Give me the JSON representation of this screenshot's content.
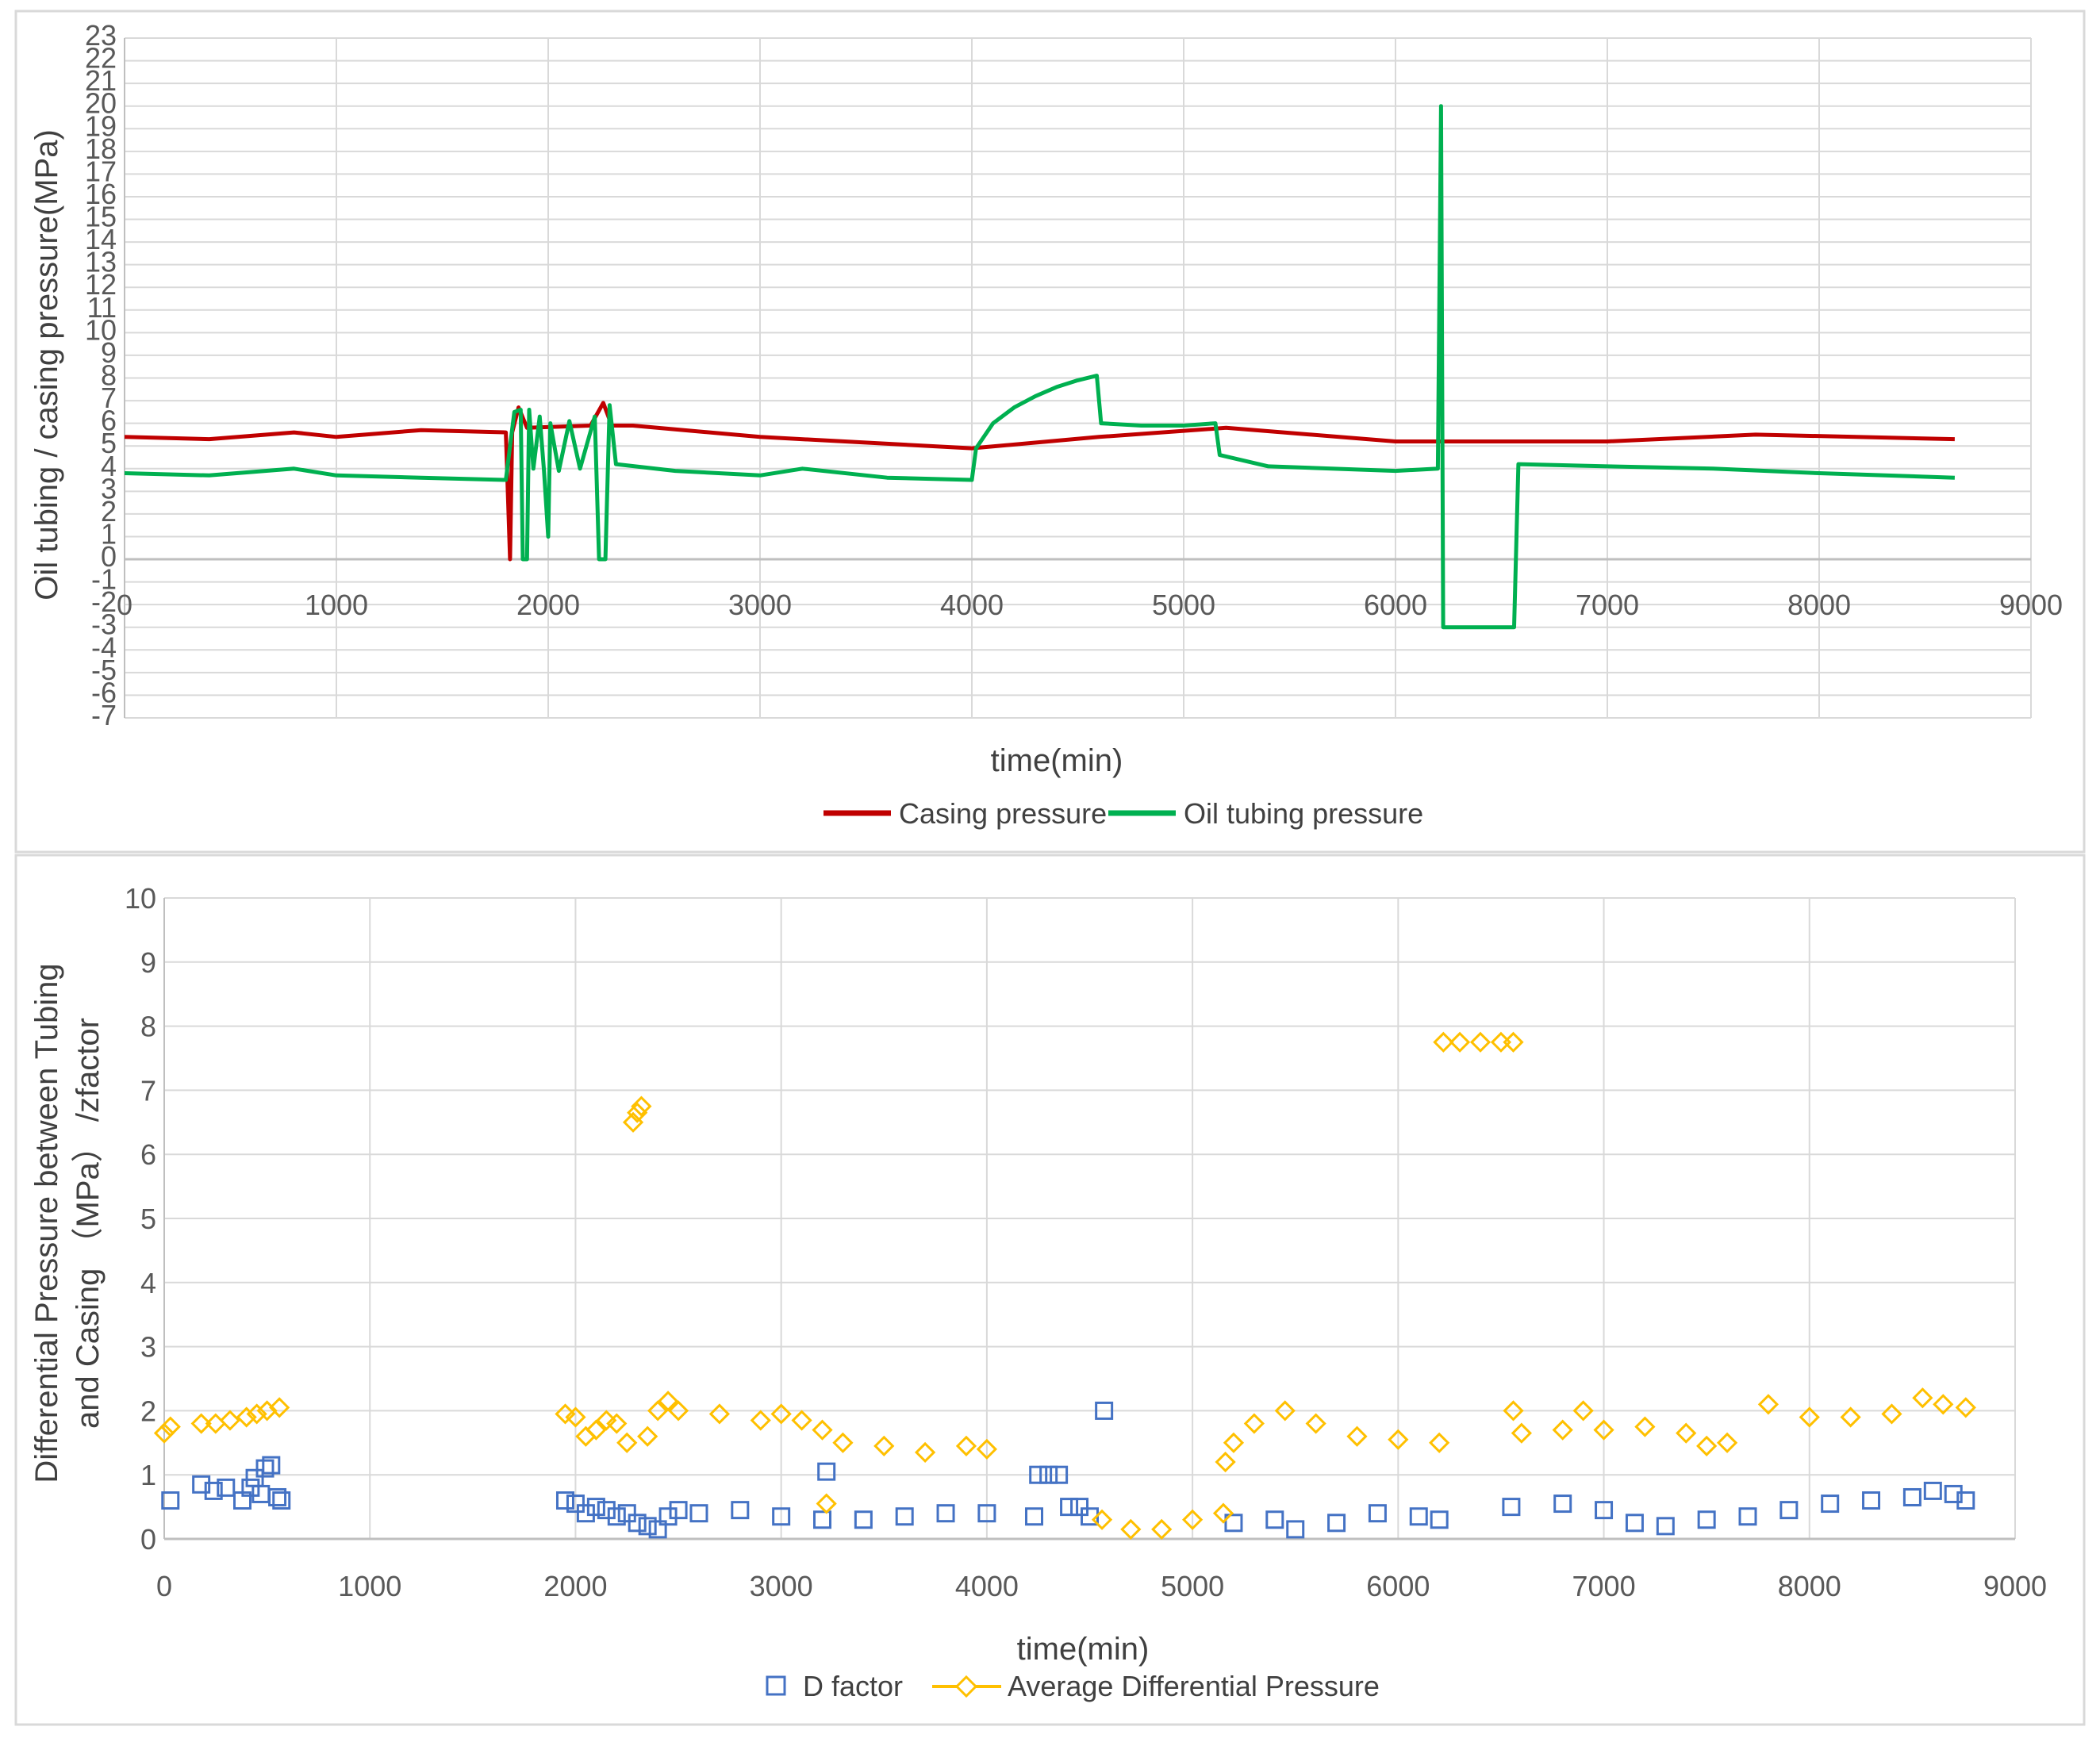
{
  "charts": [
    {
      "type": "line",
      "xlabel": "time(min)",
      "ylabel": "Oil tubing / casing pressure(MPa)",
      "xlim": [
        0,
        9000
      ],
      "ylim": [
        -7,
        23
      ],
      "x_ticks": [
        "0",
        "1000",
        "2000",
        "3000",
        "4000",
        "5000",
        "6000",
        "7000",
        "8000",
        "9000"
      ],
      "y_ticks": [
        "23",
        "22",
        "21",
        "20",
        "19",
        "18",
        "17",
        "16",
        "15",
        "14",
        "13",
        "12",
        "11",
        "10",
        "9",
        "8",
        "7",
        "6",
        "5",
        "4",
        "3",
        "2",
        "1",
        "0",
        "-1",
        "-2",
        "-3",
        "-4",
        "-5",
        "-6",
        "-7"
      ],
      "grid": true,
      "legend_position": "bottom",
      "series": [
        {
          "name": "Casing pressure",
          "color": "#C00000",
          "points": [
            [
              0,
              5.4
            ],
            [
              400,
              5.3
            ],
            [
              800,
              5.6
            ],
            [
              1000,
              5.4
            ],
            [
              1400,
              5.7
            ],
            [
              1800,
              5.6
            ],
            [
              1820,
              0
            ],
            [
              1830,
              5.6
            ],
            [
              1860,
              6.7
            ],
            [
              1900,
              5.8
            ],
            [
              2200,
              5.9
            ],
            [
              2260,
              6.9
            ],
            [
              2300,
              5.9
            ],
            [
              2400,
              5.9
            ],
            [
              3000,
              5.4
            ],
            [
              4000,
              4.9
            ],
            [
              4600,
              5.4
            ],
            [
              5200,
              5.8
            ],
            [
              6000,
              5.2
            ],
            [
              7000,
              5.2
            ],
            [
              7700,
              5.5
            ],
            [
              8640,
              5.3
            ]
          ]
        },
        {
          "name": "Oil tubing pressure",
          "color": "#00B050",
          "points": [
            [
              0,
              3.8
            ],
            [
              400,
              3.7
            ],
            [
              800,
              4.0
            ],
            [
              1000,
              3.7
            ],
            [
              1400,
              3.6
            ],
            [
              1800,
              3.5
            ],
            [
              1840,
              6.5
            ],
            [
              1870,
              6.6
            ],
            [
              1880,
              0
            ],
            [
              1900,
              0
            ],
            [
              1910,
              6.6
            ],
            [
              1930,
              4.0
            ],
            [
              1960,
              6.3
            ],
            [
              1980,
              3.9
            ],
            [
              2000,
              1.0
            ],
            [
              2010,
              6.0
            ],
            [
              2050,
              3.9
            ],
            [
              2100,
              6.1
            ],
            [
              2150,
              4.0
            ],
            [
              2220,
              6.3
            ],
            [
              2240,
              0
            ],
            [
              2270,
              0
            ],
            [
              2290,
              6.8
            ],
            [
              2320,
              4.2
            ],
            [
              2600,
              3.9
            ],
            [
              3000,
              3.7
            ],
            [
              3200,
              4.0
            ],
            [
              3600,
              3.6
            ],
            [
              4000,
              3.5
            ],
            [
              4020,
              4.9
            ],
            [
              4100,
              6.0
            ],
            [
              4200,
              6.7
            ],
            [
              4300,
              7.2
            ],
            [
              4400,
              7.6
            ],
            [
              4500,
              7.9
            ],
            [
              4590,
              8.1
            ],
            [
              4610,
              6.0
            ],
            [
              4800,
              5.9
            ],
            [
              5000,
              5.9
            ],
            [
              5150,
              6.0
            ],
            [
              5170,
              4.6
            ],
            [
              5400,
              4.1
            ],
            [
              6000,
              3.9
            ],
            [
              6200,
              4.0
            ],
            [
              6215,
              20.0
            ],
            [
              6225,
              -3.0
            ],
            [
              6560,
              -3.0
            ],
            [
              6580,
              4.2
            ],
            [
              7000,
              4.1
            ],
            [
              7500,
              4.0
            ],
            [
              8000,
              3.8
            ],
            [
              8640,
              3.6
            ]
          ]
        }
      ]
    },
    {
      "type": "scatter",
      "xlabel": "time(min)",
      "ylabel_line1": "Differential Pressure between Tubing",
      "ylabel_line2": "and Casing （MPa） /zfactor",
      "xlim": [
        0,
        9000
      ],
      "ylim": [
        0,
        10
      ],
      "x_ticks": [
        "0",
        "1000",
        "2000",
        "3000",
        "4000",
        "5000",
        "6000",
        "7000",
        "8000",
        "9000"
      ],
      "y_ticks": [
        "10",
        "9",
        "8",
        "7",
        "6",
        "5",
        "4",
        "3",
        "2",
        "1",
        "0"
      ],
      "grid": true,
      "legend_position": "bottom",
      "series": [
        {
          "name": "D factor",
          "color": "#4472C4",
          "marker": "square",
          "points": [
            [
              30,
              0.6
            ],
            [
              180,
              0.85
            ],
            [
              240,
              0.75
            ],
            [
              300,
              0.8
            ],
            [
              380,
              0.6
            ],
            [
              420,
              0.8
            ],
            [
              440,
              0.95
            ],
            [
              470,
              0.7
            ],
            [
              490,
              1.1
            ],
            [
              520,
              1.15
            ],
            [
              550,
              0.65
            ],
            [
              570,
              0.6
            ],
            [
              1950,
              0.6
            ],
            [
              2000,
              0.55
            ],
            [
              2050,
              0.4
            ],
            [
              2100,
              0.5
            ],
            [
              2150,
              0.45
            ],
            [
              2200,
              0.35
            ],
            [
              2250,
              0.4
            ],
            [
              2300,
              0.25
            ],
            [
              2350,
              0.2
            ],
            [
              2400,
              0.15
            ],
            [
              2450,
              0.35
            ],
            [
              2500,
              0.45
            ],
            [
              2600,
              0.4
            ],
            [
              2800,
              0.45
            ],
            [
              3000,
              0.35
            ],
            [
              3200,
              0.3
            ],
            [
              3220,
              1.05
            ],
            [
              3400,
              0.3
            ],
            [
              3600,
              0.35
            ],
            [
              3800,
              0.4
            ],
            [
              4000,
              0.4
            ],
            [
              4230,
              0.35
            ],
            [
              4250,
              1.0
            ],
            [
              4300,
              1.0
            ],
            [
              4350,
              1.0
            ],
            [
              4400,
              0.5
            ],
            [
              4450,
              0.5
            ],
            [
              4500,
              0.35
            ],
            [
              4570,
              2.0
            ],
            [
              5200,
              0.25
            ],
            [
              5400,
              0.3
            ],
            [
              5500,
              0.15
            ],
            [
              5700,
              0.25
            ],
            [
              5900,
              0.4
            ],
            [
              6100,
              0.35
            ],
            [
              6200,
              0.3
            ],
            [
              6550,
              0.5
            ],
            [
              6800,
              0.55
            ],
            [
              7000,
              0.45
            ],
            [
              7150,
              0.25
            ],
            [
              7300,
              0.2
            ],
            [
              7500,
              0.3
            ],
            [
              7700,
              0.35
            ],
            [
              7900,
              0.45
            ],
            [
              8100,
              0.55
            ],
            [
              8300,
              0.6
            ],
            [
              8500,
              0.65
            ],
            [
              8600,
              0.75
            ],
            [
              8700,
              0.7
            ],
            [
              8760,
              0.6
            ]
          ]
        },
        {
          "name": "Average Differential Pressure",
          "color": "#FFC000",
          "marker": "diamond",
          "points": [
            [
              0,
              1.65
            ],
            [
              30,
              1.75
            ],
            [
              180,
              1.8
            ],
            [
              250,
              1.8
            ],
            [
              320,
              1.85
            ],
            [
              400,
              1.9
            ],
            [
              450,
              1.95
            ],
            [
              500,
              2.0
            ],
            [
              560,
              2.05
            ],
            [
              1950,
              1.95
            ],
            [
              2000,
              1.9
            ],
            [
              2050,
              1.6
            ],
            [
              2100,
              1.7
            ],
            [
              2150,
              1.85
            ],
            [
              2200,
              1.8
            ],
            [
              2250,
              1.5
            ],
            [
              2280,
              6.5
            ],
            [
              2300,
              6.65
            ],
            [
              2320,
              6.75
            ],
            [
              2350,
              1.6
            ],
            [
              2400,
              2.0
            ],
            [
              2450,
              2.15
            ],
            [
              2500,
              2.0
            ],
            [
              2700,
              1.95
            ],
            [
              2900,
              1.85
            ],
            [
              3000,
              1.95
            ],
            [
              3100,
              1.85
            ],
            [
              3200,
              1.7
            ],
            [
              3220,
              0.55
            ],
            [
              3300,
              1.5
            ],
            [
              3500,
              1.45
            ],
            [
              3700,
              1.35
            ],
            [
              3900,
              1.45
            ],
            [
              4000,
              1.4
            ],
            [
              4560,
              0.3
            ],
            [
              4700,
              0.15
            ],
            [
              4850,
              0.15
            ],
            [
              5000,
              0.3
            ],
            [
              5150,
              0.4
            ],
            [
              5160,
              1.2
            ],
            [
              5200,
              1.5
            ],
            [
              5300,
              1.8
            ],
            [
              5450,
              2.0
            ],
            [
              5600,
              1.8
            ],
            [
              5800,
              1.6
            ],
            [
              6000,
              1.55
            ],
            [
              6200,
              1.5
            ],
            [
              6220,
              7.75
            ],
            [
              6300,
              7.75
            ],
            [
              6400,
              7.75
            ],
            [
              6500,
              7.75
            ],
            [
              6560,
              7.75
            ],
            [
              6560,
              2.0
            ],
            [
              6600,
              1.65
            ],
            [
              6800,
              1.7
            ],
            [
              6900,
              2.0
            ],
            [
              7000,
              1.7
            ],
            [
              7200,
              1.75
            ],
            [
              7400,
              1.65
            ],
            [
              7500,
              1.45
            ],
            [
              7600,
              1.5
            ],
            [
              7800,
              2.1
            ],
            [
              8000,
              1.9
            ],
            [
              8200,
              1.9
            ],
            [
              8400,
              1.95
            ],
            [
              8550,
              2.2
            ],
            [
              8650,
              2.1
            ],
            [
              8760,
              2.05
            ]
          ]
        }
      ]
    }
  ]
}
